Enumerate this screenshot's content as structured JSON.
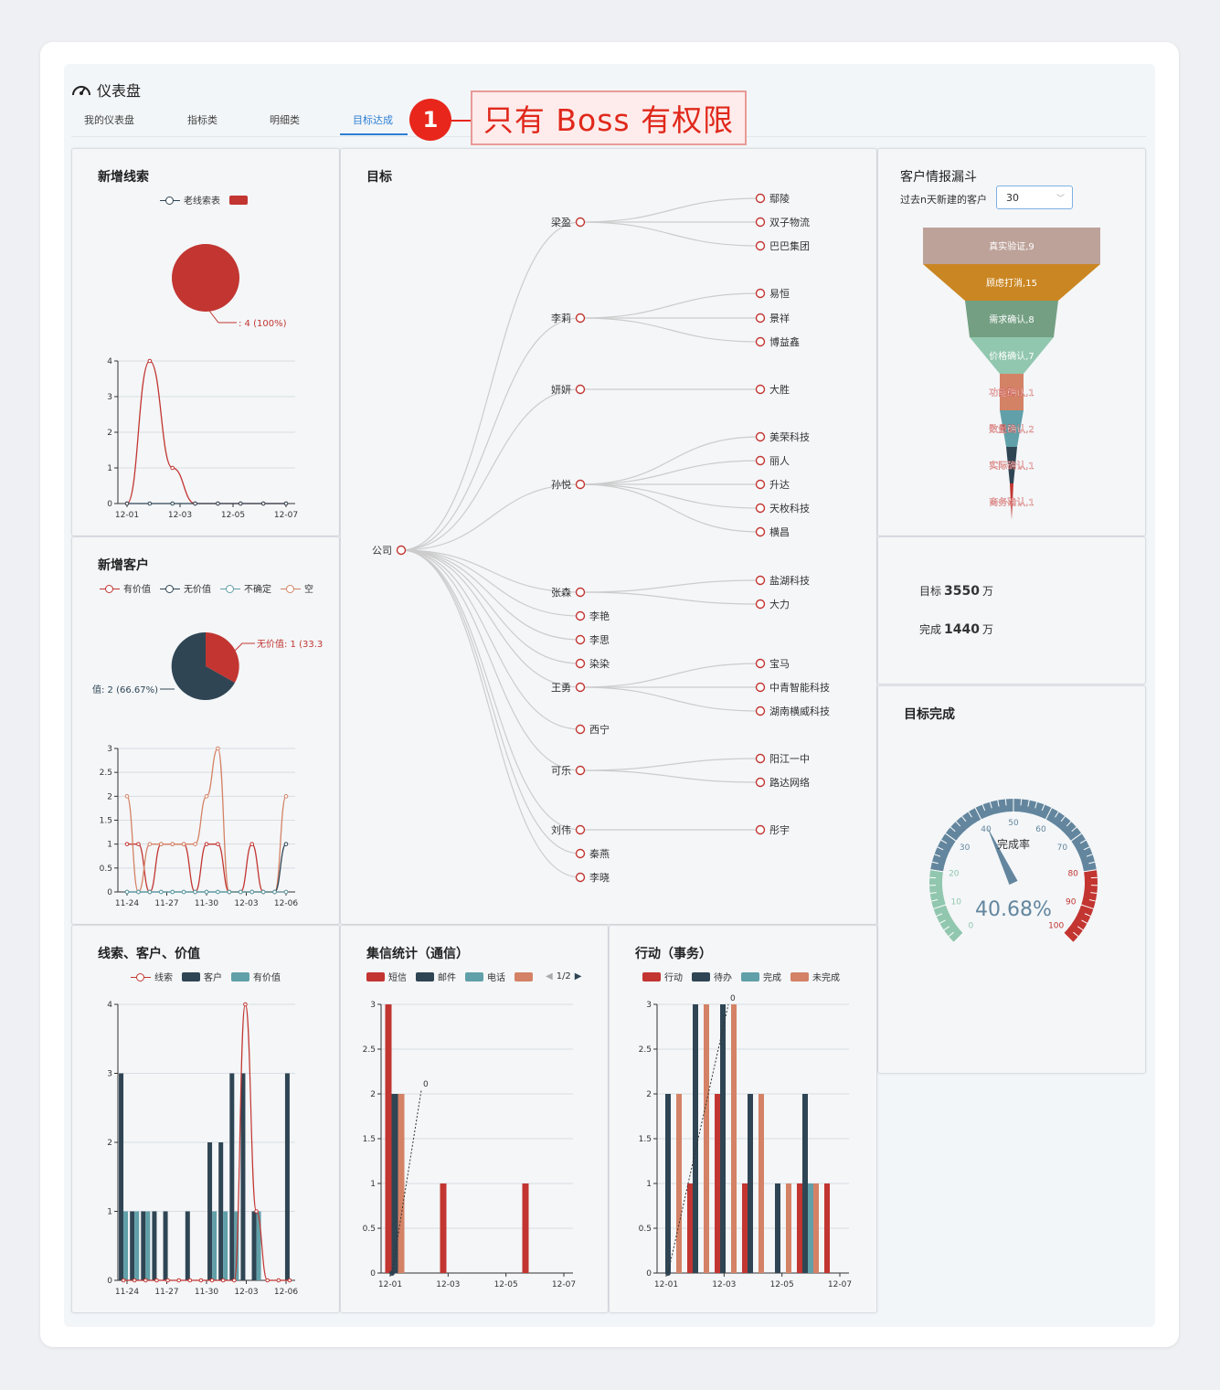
{
  "header": {
    "title": "仪表盘",
    "tabs": [
      {
        "label": "我的仪表盘"
      },
      {
        "label": "指标类"
      },
      {
        "label": "明细类"
      },
      {
        "label": "目标达成"
      }
    ],
    "callout_number": "1",
    "callout_text": "只有 Boss 有权限"
  },
  "colors": {
    "red": "#c23531",
    "navy": "#2f4554",
    "teal": "#61a0a8",
    "orange": "#d48265",
    "accent": "#2d7fd3"
  },
  "new_leads": {
    "title": "新增线索",
    "legend": [
      "老线索表",
      ""
    ],
    "pie_label": ": 4 (100%)",
    "chart_data": {
      "type": "line",
      "x": [
        "12-01",
        "12-02",
        "12-03",
        "12-04",
        "12-05",
        "12-06",
        "12-07",
        "12-08"
      ],
      "xticks": [
        "12-01",
        "12-03",
        "12-05",
        "12-07"
      ],
      "yticks": [
        "0",
        "1",
        "2",
        "3",
        "4"
      ],
      "ylim": [
        0,
        4
      ],
      "series": [
        {
          "name": "老线索表",
          "values": [
            0,
            4,
            1,
            0,
            0,
            0,
            0,
            0
          ],
          "color": "#c23531"
        },
        {
          "name": "",
          "values": [
            0,
            0,
            0,
            0,
            0,
            0,
            0,
            0
          ],
          "color": "#2f4554"
        }
      ]
    }
  },
  "new_customers": {
    "title": "新增客户",
    "legend": [
      "有价值",
      "无价值",
      "不确定",
      "空"
    ],
    "pie_label_right": "无价值: 1 (33.3",
    "pie_label_left": "值: 2 (66.67%)",
    "chart_data": {
      "type": "line",
      "xticks": [
        "11-24",
        "11-27",
        "11-30",
        "12-03",
        "12-06"
      ],
      "yticks": [
        "0",
        "0.5",
        "1",
        "1.5",
        "2",
        "2.5",
        "3"
      ],
      "ylim": [
        0,
        3
      ],
      "series": [
        {
          "name": "有价值",
          "values": [
            1,
            1,
            0,
            1,
            1,
            1,
            0,
            1,
            1,
            0,
            0,
            1,
            0,
            0,
            0
          ],
          "color": "#c23531"
        },
        {
          "name": "空",
          "values": [
            2,
            0,
            1,
            1,
            1,
            1,
            1,
            2,
            3,
            0,
            0,
            0,
            0,
            0,
            2
          ],
          "color": "#d48265"
        },
        {
          "name": "无价值",
          "values": [
            0,
            0,
            0,
            0,
            0,
            0,
            0,
            0,
            0,
            0,
            0,
            0,
            0,
            0,
            1
          ],
          "color": "#2f4554"
        },
        {
          "name": "不确定",
          "values": [
            0,
            0,
            0,
            0,
            0,
            0,
            0,
            0,
            0,
            0,
            0,
            0,
            0,
            0,
            0
          ],
          "color": "#61a0a8"
        }
      ]
    }
  },
  "target_tree": {
    "title": "目标",
    "root": "公司",
    "people": [
      {
        "name": "梁盈",
        "clients": [
          "鄢陵",
          "双子物流",
          "巴巴集团"
        ]
      },
      {
        "name": "李莉",
        "clients": [
          "易恒",
          "景祥",
          "博益鑫"
        ]
      },
      {
        "name": "妍妍",
        "clients": [
          "大胜"
        ]
      },
      {
        "name": "孙悦",
        "clients": [
          "美荣科技",
          "丽人",
          "升达",
          "天枚科技",
          "横昌"
        ]
      },
      {
        "name": "张森",
        "clients": [
          "盐湖科技",
          "大力"
        ]
      },
      {
        "name": "李艳",
        "clients": []
      },
      {
        "name": "李思",
        "clients": []
      },
      {
        "name": "染染",
        "clients": []
      },
      {
        "name": "王勇",
        "clients": [
          "宝马",
          "中青智能科技",
          "湖南横威科技"
        ]
      },
      {
        "name": "西宁",
        "clients": []
      },
      {
        "name": "可乐",
        "clients": [
          "阳江一中",
          "路达网络"
        ]
      },
      {
        "name": "刘伟",
        "clients": [
          "彤宇"
        ]
      },
      {
        "name": "秦燕",
        "clients": []
      },
      {
        "name": "李晓",
        "clients": []
      }
    ]
  },
  "funnel": {
    "title": "客户情报漏斗",
    "filter_label": "过去n天新建的客户",
    "filter_value": "30",
    "chart_data": {
      "type": "funnel",
      "stages": [
        {
          "label": "真实验证,9",
          "value": 9,
          "color": "#bda29a"
        },
        {
          "label": "顾虑打消,15",
          "value": 15,
          "color": "#ca8622"
        },
        {
          "label": "需求确认,8",
          "value": 8,
          "color": "#749f83"
        },
        {
          "label": "价格确认,7",
          "value": 7,
          "color": "#91c7ae"
        },
        {
          "label": "功能确认,1",
          "value": 1,
          "color": "#d48265"
        },
        {
          "label": "数量确认,2",
          "value": 2,
          "color": "#61a0a8"
        },
        {
          "label": "实际确认,1",
          "value": 1,
          "color": "#2f4554"
        },
        {
          "label": "商务确认,1",
          "value": 1,
          "color": "#c23531"
        }
      ]
    }
  },
  "kpi": {
    "target_label": "目标",
    "target_value": "3550",
    "unit": "万",
    "done_label": "完成",
    "done_value": "1440"
  },
  "gauge": {
    "title": "目标完成",
    "label": "完成率",
    "value_text": "40.68%",
    "value": 40.68,
    "ticks": [
      "0",
      "10",
      "20",
      "30",
      "40",
      "50",
      "60",
      "70",
      "80",
      "90",
      "100"
    ]
  },
  "leads_customers_value": {
    "title": "线索、客户、价值",
    "legend": [
      "线索",
      "客户",
      "有价值"
    ],
    "chart_data": {
      "type": "bar",
      "xticks": [
        "11-24",
        "11-27",
        "11-30",
        "12-03",
        "12-06"
      ],
      "yticks": [
        "0",
        "1",
        "2",
        "3",
        "4"
      ],
      "ylim": [
        0,
        4
      ],
      "series": [
        {
          "name": "客户",
          "values": [
            3,
            1,
            1,
            1,
            1,
            0,
            1,
            0,
            2,
            2,
            3,
            3,
            1,
            0,
            0,
            3
          ],
          "color": "#2f4554"
        },
        {
          "name": "有价值",
          "values": [
            1,
            1,
            1,
            0,
            0,
            0,
            0,
            0,
            1,
            1,
            1,
            0,
            1,
            0,
            0,
            0
          ],
          "color": "#61a0a8"
        },
        {
          "name": "线索",
          "values": [
            0,
            0,
            0,
            0,
            0,
            0,
            0,
            0,
            0,
            0,
            0,
            4,
            1,
            0,
            0,
            0
          ],
          "color": "#c23531"
        }
      ]
    }
  },
  "messaging": {
    "title": "集信统计（通信）",
    "legend": [
      "短信",
      "邮件",
      "电话",
      ""
    ],
    "page": "1/2",
    "zero_label": "0",
    "chart_data": {
      "type": "bar",
      "xticks": [
        "12-01",
        "12-03",
        "12-05",
        "12-07"
      ],
      "yticks": [
        "0",
        "0.5",
        "1",
        "1.5",
        "2",
        "2.5",
        "3"
      ],
      "ylim": [
        0,
        3
      ],
      "categories": [
        "12-01",
        "12-02",
        "12-03",
        "12-04",
        "12-05",
        "12-06",
        "12-07"
      ],
      "series": [
        {
          "name": "短信",
          "values": [
            3,
            0,
            1,
            0,
            0,
            1,
            0
          ],
          "color": "#c23531"
        },
        {
          "name": "邮件",
          "values": [
            2,
            0,
            0,
            0,
            0,
            0,
            0
          ],
          "color": "#2f4554"
        },
        {
          "name": "",
          "values": [
            2,
            0,
            0,
            0,
            0,
            0,
            0
          ],
          "color": "#d48265"
        }
      ]
    }
  },
  "actions": {
    "title": "行动（事务）",
    "legend": [
      "行动",
      "待办",
      "完成",
      "未完成"
    ],
    "zero_label": "0",
    "chart_data": {
      "type": "bar",
      "xticks": [
        "12-01",
        "12-03",
        "12-05",
        "12-07"
      ],
      "yticks": [
        "0",
        "0.5",
        "1",
        "1.5",
        "2",
        "2.5",
        "3"
      ],
      "ylim": [
        0,
        3
      ],
      "categories": [
        "12-01",
        "12-02",
        "12-03",
        "12-04",
        "12-05",
        "12-06",
        "12-07"
      ],
      "series": [
        {
          "name": "行动",
          "values": [
            0,
            1,
            2,
            1,
            0,
            1,
            1
          ],
          "color": "#c23531"
        },
        {
          "name": "待办",
          "values": [
            2,
            3,
            3,
            2,
            1,
            2,
            0
          ],
          "color": "#2f4554"
        },
        {
          "name": "完成",
          "values": [
            0,
            0,
            0,
            0,
            0,
            1,
            0
          ],
          "color": "#61a0a8"
        },
        {
          "name": "未完成",
          "values": [
            2,
            3,
            3,
            2,
            1,
            1,
            0
          ],
          "color": "#d48265"
        }
      ]
    }
  }
}
